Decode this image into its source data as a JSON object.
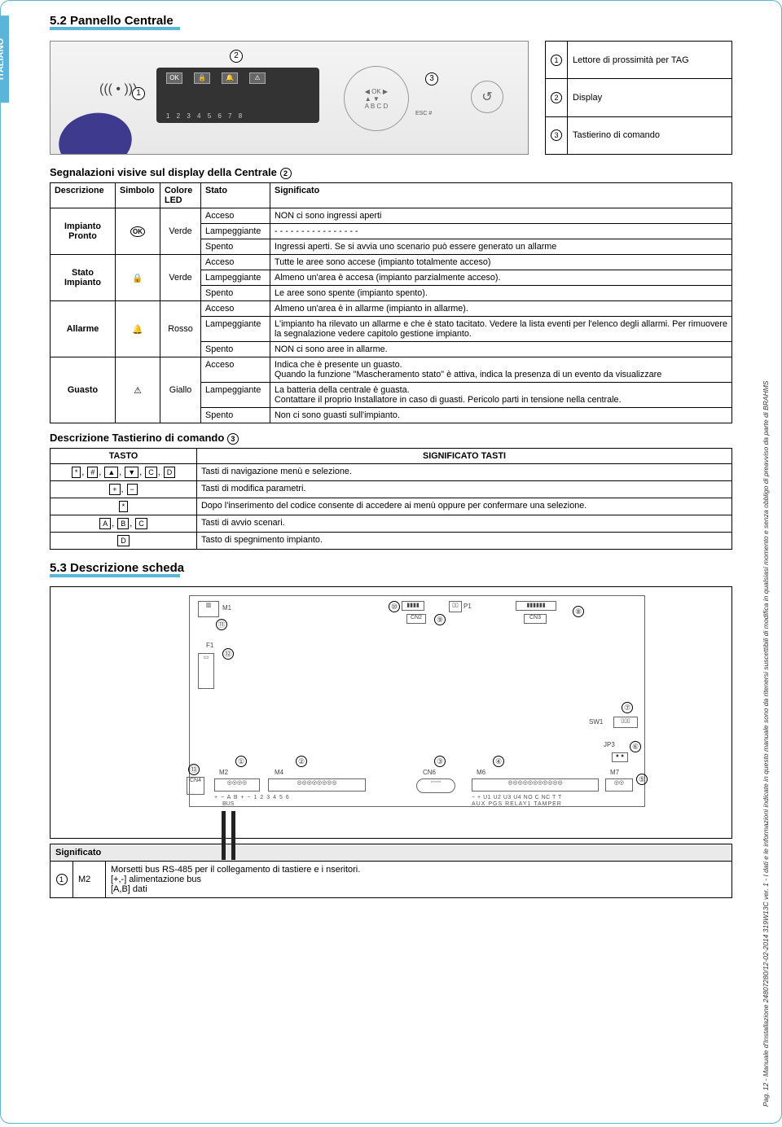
{
  "sideTab": "ITALIANO",
  "footer": "Pag. 12 - Manuale d'Installazione 24807280/12-02-2014 319W13C ver. 1 - I dati e le informazioni indicate in questo manuale sono da ritenersi suscettibili di modifica in qualsiasi momento e senza obbligo di preavviso da parte di BRAHMS",
  "section52": "5.2 Pannello Centrale",
  "displayNums": "1 2 3 4 5 6 7 8",
  "escLabel": "ESC  #",
  "legend": {
    "1": "Lettore di prossimità per TAG",
    "2": "Display",
    "3": "Tastierino di comando"
  },
  "sigTitle": "Segnalazioni visive sul display della Centrale ",
  "sigCirc": "2",
  "tableHead": {
    "c1": "Descrizione",
    "c2": "Simbolo",
    "c3": "Colore LED",
    "c4": "Stato",
    "c5": "Significato"
  },
  "rows": {
    "r1": {
      "desc": "Impianto Pronto",
      "sym": "OK",
      "col": "Verde",
      "s1": "Acceso",
      "m1": "NON ci sono ingressi aperti",
      "s2": "Lampeggiante",
      "m2": "- - - - - - - - - - - - - - - -",
      "s3": "Spento",
      "m3": "Ingressi aperti. Se si avvia uno scenario può essere generato un allarme"
    },
    "r2": {
      "desc": "Stato Impianto",
      "sym": "🔒",
      "col": "Verde",
      "s1": "Acceso",
      "m1": "Tutte le aree sono accese (impianto totalmente acceso)",
      "s2": "Lampeggiante",
      "m2": "Almeno un'area è accesa (impianto parzialmente acceso).",
      "s3": "Spento",
      "m3": "Le aree sono spente (impianto spento)."
    },
    "r3": {
      "desc": "Allarme",
      "sym": "🔔",
      "col": "Rosso",
      "s1": "Acceso",
      "m1": "Almeno un'area è in allarme (impianto in allarme).",
      "s2": "Lampeggiante",
      "m2": "L'impianto ha rilevato un allarme e che è stato tacitato. Vedere la lista eventi per l'elenco degli allarmi. Per rimuovere la segnalazione vedere capitolo gestione impianto.",
      "s3": "Spento",
      "m3": "NON ci sono aree in allarme."
    },
    "r4": {
      "desc": "Guasto",
      "sym": "⚠",
      "col": "Giallo",
      "s1": "Acceso",
      "m1": "Indica che è presente un guasto.\nQuando la funzione \"Mascheramento stato\" è attiva, indica la presenza di un evento da visualizzare",
      "s2": "Lampeggiante",
      "m2": "La batteria della centrale è guasta.\nContattare il proprio Installatore in caso di guasti. Pericolo parti in tensione nella centrale.",
      "s3": "Spento",
      "m3": "Non ci sono guasti sull'impianto."
    }
  },
  "keypadTitle": "Descrizione Tastierino di comando ",
  "keypadCirc": "3",
  "keyHead": {
    "c1": "TASTO",
    "c2": "SIGNIFICATO TASTI"
  },
  "keys": {
    "k1": {
      "t": [
        "*",
        "#",
        "▲",
        "▼",
        "C",
        "D"
      ],
      "m": "Tasti di navigazione menù e selezione."
    },
    "k2": {
      "t": [
        "+",
        "−"
      ],
      "m": "Tasti di modifica parametri."
    },
    "k3": {
      "t": [
        "*"
      ],
      "m": "Dopo l'inserimento del codice consente di accedere ai menù oppure per confermare una selezione."
    },
    "k4": {
      "t": [
        "A",
        "B",
        "C"
      ],
      "m": "Tasti di avvio scenari."
    },
    "k5": {
      "t": [
        "D"
      ],
      "m": "Tasto di spegnimento impianto."
    }
  },
  "section53": "5.3 Descrizione scheda",
  "board": {
    "M1": "M1",
    "F1": "F1",
    "CN2": "CN2",
    "P1": "P1",
    "CN3": "CN3",
    "SW1": "SW1",
    "JP3": "JP3",
    "CN4": "CN4",
    "M2": "M2",
    "M4": "M4",
    "CN6": "CN6",
    "M6": "M6",
    "M7": "M7",
    "busLabels": "+   −   A   B          +   −   1   2   3   4   5   6",
    "m6Labels": "−   +   U1  U2  U3  U4  NO   C   NC   T     T",
    "m6Sub": "AUX    PGS               RELAY1     TAMPER",
    "busSub": "BUS"
  },
  "sigTable": {
    "head": "Significato",
    "num": "1",
    "label": "M2",
    "text": "Morsetti bus RS-485 per il collegamento di tastiere e i nseritori.\n[+,-] alimentazione bus\n[A,B] dati"
  },
  "colors": {
    "accent": "#5bb5d8",
    "tag": "#3e3b8e",
    "text": "#000000",
    "gray": "#888888"
  }
}
